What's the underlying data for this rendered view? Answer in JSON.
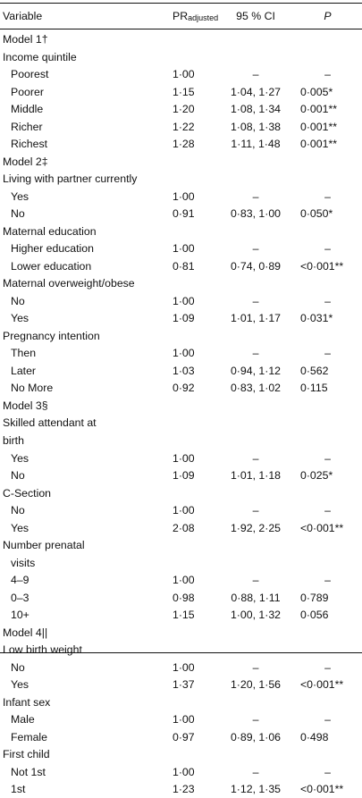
{
  "header": {
    "variable": "Variable",
    "pr_main": "PR",
    "pr_sub": "adjusted",
    "ci": "95 % CI",
    "p": "P"
  },
  "rows": [
    {
      "label": "Model 1†",
      "indent": false
    },
    {
      "label": "Income quintile",
      "indent": false
    },
    {
      "label": "Poorest",
      "indent": true,
      "pr": "1·00",
      "ci": "–",
      "p": "–"
    },
    {
      "label": "Poorer",
      "indent": true,
      "pr": "1·15",
      "ci": "1·04, 1·27",
      "p": "0·005*"
    },
    {
      "label": "Middle",
      "indent": true,
      "pr": "1·20",
      "ci": "1·08, 1·34",
      "p": "0·001**"
    },
    {
      "label": "Richer",
      "indent": true,
      "pr": "1·22",
      "ci": "1·08, 1·38",
      "p": "0·001**"
    },
    {
      "label": "Richest",
      "indent": true,
      "pr": "1·28",
      "ci": "1·11, 1·48",
      "p": "0·001**"
    },
    {
      "label": "Model 2‡",
      "indent": false
    },
    {
      "label": "Living with partner currently",
      "indent": false
    },
    {
      "label": "Yes",
      "indent": true,
      "pr": "1·00",
      "ci": "–",
      "p": "–"
    },
    {
      "label": "No",
      "indent": true,
      "pr": "0·91",
      "ci": "0·83, 1·00",
      "p": "0·050*"
    },
    {
      "label": "Maternal education",
      "indent": false
    },
    {
      "label": "Higher education",
      "indent": true,
      "pr": "1·00",
      "ci": "–",
      "p": "–"
    },
    {
      "label": "Lower education",
      "indent": true,
      "pr": "0·81",
      "ci": "0·74, 0·89",
      "p": "<0·001**"
    },
    {
      "label": "Maternal overweight/obese",
      "indent": false
    },
    {
      "label": "No",
      "indent": true,
      "pr": "1·00",
      "ci": "–",
      "p": "–"
    },
    {
      "label": "Yes",
      "indent": true,
      "pr": "1·09",
      "ci": "1·01, 1·17",
      "p": "0·031*"
    },
    {
      "label": "Pregnancy intention",
      "indent": false
    },
    {
      "label": "Then",
      "indent": true,
      "pr": "1·00",
      "ci": "–",
      "p": "–"
    },
    {
      "label": "Later",
      "indent": true,
      "pr": "1·03",
      "ci": "0·94, 1·12",
      "p": "0·562"
    },
    {
      "label": "No More",
      "indent": true,
      "pr": "0·92",
      "ci": "0·83, 1·02",
      "p": "0·115"
    },
    {
      "label": "Model 3§",
      "indent": false
    },
    {
      "label": "Skilled attendant at",
      "indent": false
    },
    {
      "label": "birth",
      "indent": false
    },
    {
      "label": "Yes",
      "indent": true,
      "pr": "1·00",
      "ci": "–",
      "p": "–"
    },
    {
      "label": "No",
      "indent": true,
      "pr": "1·09",
      "ci": "1·01, 1·18",
      "p": "0·025*"
    },
    {
      "label": "C-Section",
      "indent": false
    },
    {
      "label": "No",
      "indent": true,
      "pr": "1·00",
      "ci": "–",
      "p": "–"
    },
    {
      "label": "Yes",
      "indent": true,
      "pr": "2·08",
      "ci": "1·92, 2·25",
      "p": "<0·001**"
    },
    {
      "label": "Number prenatal",
      "indent": false
    },
    {
      "label": "visits",
      "indent": true
    },
    {
      "label": "4–9",
      "indent": true,
      "pr": "1·00",
      "ci": "–",
      "p": "–"
    },
    {
      "label": "0–3",
      "indent": true,
      "pr": "0·98",
      "ci": "0·88, 1·11",
      "p": "0·789"
    },
    {
      "label": "10+",
      "indent": true,
      "pr": "1·15",
      "ci": "1·00, 1·32",
      "p": "0·056"
    },
    {
      "label": "Model 4||",
      "indent": false
    },
    {
      "label": "Low birth weight",
      "indent": false
    },
    {
      "label": "No",
      "indent": true,
      "pr": "1·00",
      "ci": "–",
      "p": "–"
    },
    {
      "label": "Yes",
      "indent": true,
      "pr": "1·37",
      "ci": "1·20, 1·56",
      "p": "<0·001**"
    },
    {
      "label": "Infant sex",
      "indent": false
    },
    {
      "label": "Male",
      "indent": true,
      "pr": "1·00",
      "ci": "–",
      "p": "–"
    },
    {
      "label": "Female",
      "indent": true,
      "pr": "0·97",
      "ci": "0·89, 1·06",
      "p": "0·498"
    },
    {
      "label": "First child",
      "indent": false
    },
    {
      "label": "Not 1st",
      "indent": true,
      "pr": "1·00",
      "ci": "–",
      "p": "–"
    },
    {
      "label": "1st",
      "indent": true,
      "pr": "1·23",
      "ci": "1·12, 1·35",
      "p": "<0·001**"
    }
  ]
}
